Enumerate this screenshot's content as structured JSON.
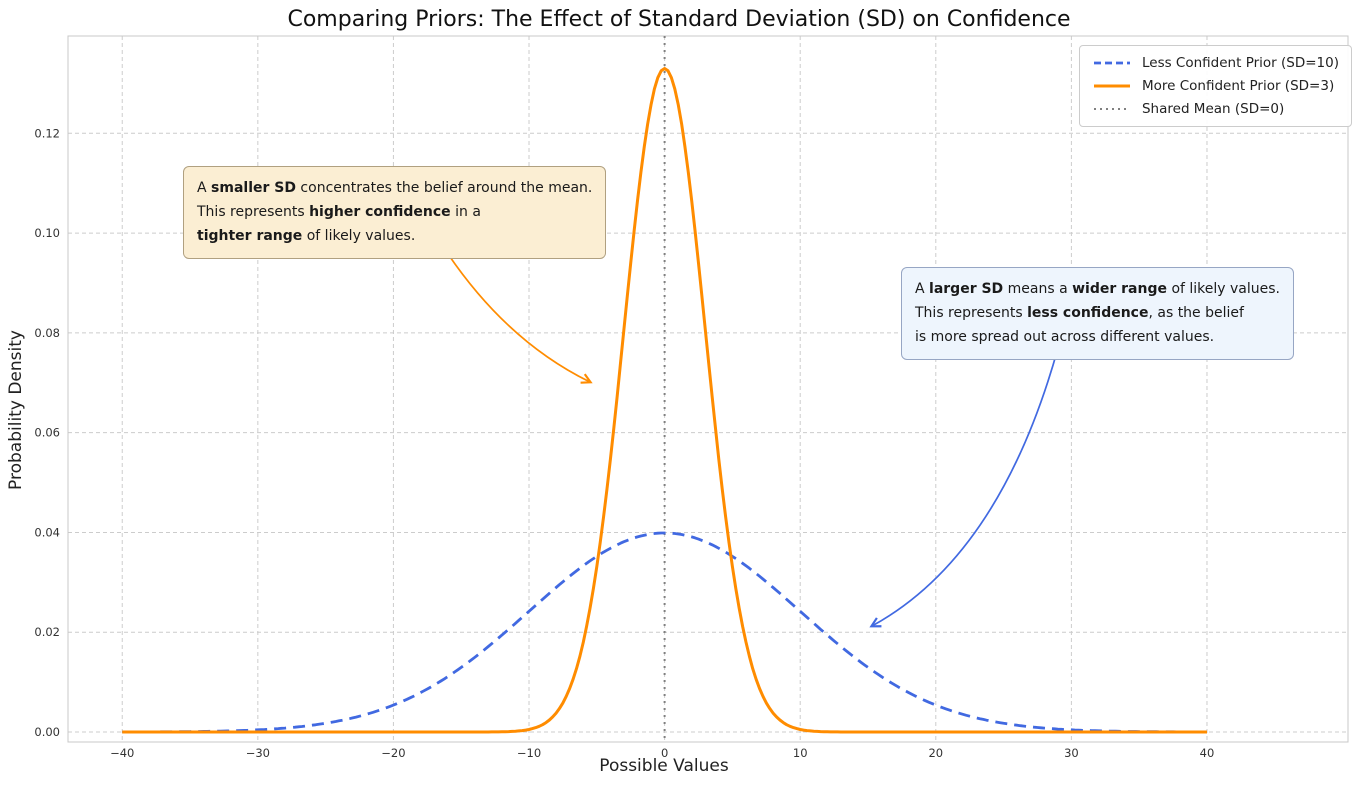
{
  "chart_data": {
    "type": "line",
    "title": "Comparing Priors: The Effect of Standard Deviation (SD) on Confidence",
    "xlabel": "Possible Values",
    "ylabel": "Probability Density",
    "xlim": [
      -44,
      50.4
    ],
    "ylim": [
      -0.002,
      0.1395
    ],
    "x_data_range": [
      -40,
      40
    ],
    "x_ticks": {
      "values": [
        -40,
        -30,
        -20,
        -10,
        0,
        10,
        20,
        30,
        40
      ],
      "labels": [
        "−40",
        "−30",
        "−20",
        "−10",
        "0",
        "10",
        "20",
        "30",
        "40"
      ]
    },
    "y_ticks": {
      "values": [
        0,
        0.02,
        0.04,
        0.06,
        0.08,
        0.1,
        0.12
      ],
      "labels": [
        "0.00",
        "0.02",
        "0.04",
        "0.06",
        "0.08",
        "0.10",
        "0.12"
      ]
    },
    "grid": {
      "on": true,
      "color": "#cccccc",
      "style": "dashed"
    },
    "legend_position": "upper right",
    "series": [
      {
        "name": "Less Confident Prior (SD=10)",
        "curve": "gaussian",
        "mean": 0,
        "sd": 10,
        "peak_density": 0.0399,
        "color": "#4169e1",
        "line_style": "dashed",
        "line_width": 2.8
      },
      {
        "name": "More Confident Prior (SD=3)",
        "curve": "gaussian",
        "mean": 0,
        "sd": 3,
        "peak_density": 0.133,
        "color": "#ff8c00",
        "line_style": "solid",
        "line_width": 3
      },
      {
        "name": "Shared Mean (SD=0)",
        "curve": "vline",
        "x": 0,
        "color": "#808080",
        "line_style": "dotted",
        "line_width": 2
      }
    ]
  },
  "annotations": {
    "smaller_sd": {
      "bg": "#fbeed3",
      "border": "#b0a080",
      "arrow_color": "#ff8c00",
      "segments": [
        {
          "text": "A ",
          "bold": false
        },
        {
          "text": "smaller SD",
          "bold": true
        },
        {
          "text": " concentrates the belief around the mean.\nThis represents ",
          "bold": false
        },
        {
          "text": "higher confidence",
          "bold": true
        },
        {
          "text": " in a\n",
          "bold": false
        },
        {
          "text": "tighter range",
          "bold": true
        },
        {
          "text": " of likely values.",
          "bold": false
        }
      ]
    },
    "larger_sd": {
      "bg": "#eef5fd",
      "border": "#97a6c4",
      "arrow_color": "#4169e1",
      "segments": [
        {
          "text": "A ",
          "bold": false
        },
        {
          "text": "larger SD",
          "bold": true
        },
        {
          "text": " means a ",
          "bold": false
        },
        {
          "text": "wider range",
          "bold": true
        },
        {
          "text": " of likely values.\nThis represents ",
          "bold": false
        },
        {
          "text": "less confidence",
          "bold": true
        },
        {
          "text": ", as the belief\nis more spread out across different values.",
          "bold": false
        }
      ]
    }
  }
}
